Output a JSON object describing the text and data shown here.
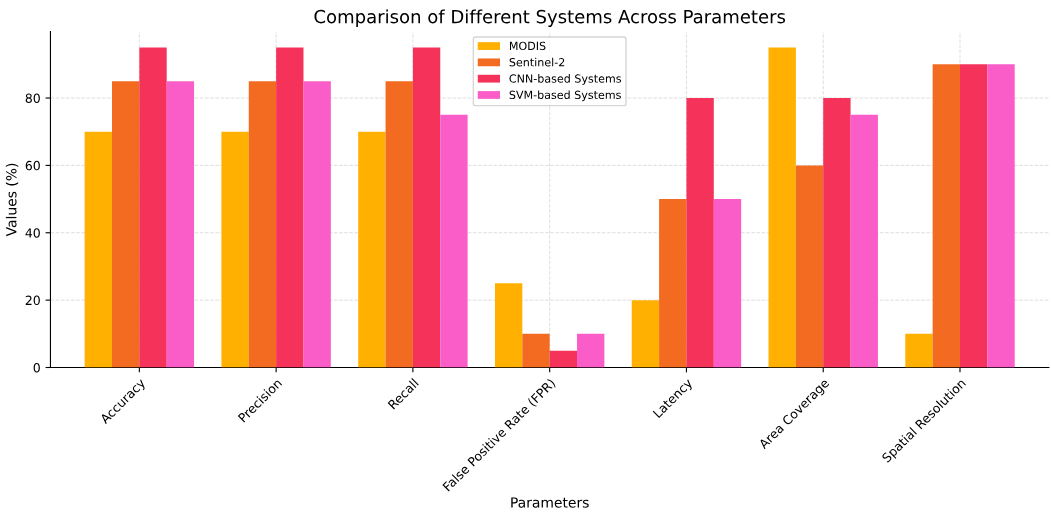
{
  "chart_data": {
    "type": "bar",
    "title": "Comparison of Different Systems Across Parameters",
    "xlabel": "Parameters",
    "ylabel": "Values (%)",
    "categories": [
      "Accuracy",
      "Precision",
      "Recall",
      "False Positive Rate (FPR)",
      "Latency",
      "Area Coverage",
      "Spatial Resolution"
    ],
    "series": [
      {
        "name": "MODIS",
        "color": "#ffb000",
        "values": [
          70,
          70,
          70,
          25,
          20,
          95,
          10
        ]
      },
      {
        "name": "Sentinel-2",
        "color": "#f26b21",
        "values": [
          85,
          85,
          85,
          10,
          50,
          60,
          90
        ]
      },
      {
        "name": "CNN-based Systems",
        "color": "#f5325a",
        "values": [
          95,
          95,
          95,
          5,
          80,
          80,
          90
        ]
      },
      {
        "name": "SVM-based Systems",
        "color": "#fa5cc8",
        "values": [
          85,
          85,
          75,
          10,
          50,
          75,
          90
        ]
      }
    ],
    "ylim": [
      0,
      99.75
    ],
    "yticks": [
      0,
      20,
      40,
      60,
      80
    ],
    "grid": true,
    "legend": "top center"
  }
}
